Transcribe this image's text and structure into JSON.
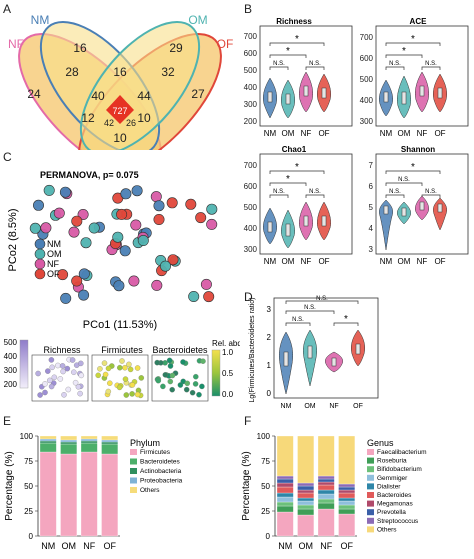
{
  "panels": {
    "A": "A",
    "B": "B",
    "C": "C",
    "D": "D",
    "E": "E",
    "F": "F"
  },
  "colors": {
    "NM": "#4a7fb5",
    "OM": "#4fb3b0",
    "NF": "#d85aa5",
    "OF": "#e0473a"
  },
  "venn": {
    "labels": {
      "NM": "NM",
      "OM": "OM",
      "NF": "NF",
      "OF": "OF"
    },
    "regions": [
      "16",
      "29",
      "28",
      "16",
      "32",
      "24",
      "40",
      "44",
      "27",
      "727",
      "12",
      "42",
      "26",
      "10",
      "10"
    ]
  },
  "violins": {
    "titles": [
      "Richness",
      "ACE",
      "Chao1",
      "Shannon"
    ],
    "groups": [
      "NM",
      "OM",
      "NF",
      "OF"
    ],
    "sig": {
      "ns": "N.S.",
      "star": "*"
    },
    "richness_ticks": [
      "200",
      "300",
      "400",
      "500",
      "600",
      "700"
    ],
    "ace_ticks": [
      "300",
      "400",
      "500",
      "600",
      "700"
    ],
    "chao1_ticks": [
      "300",
      "400",
      "500",
      "600",
      "700"
    ],
    "shannon_ticks": [
      "3",
      "4",
      "5",
      "6",
      "7"
    ]
  },
  "pcoa": {
    "stat": "PERMANOVA, p= 0.075",
    "xlabel": "PCo1 (11.53%)",
    "ylabel": "PCo2 (8.5%)",
    "legend": [
      "NM",
      "OM",
      "NF",
      "OF"
    ],
    "mini_titles": [
      "Richness",
      "Firmicutes",
      "Bacteroidetes"
    ],
    "richness_ticks": [
      "500",
      "400",
      "300",
      "200"
    ],
    "rel_label": "Rel. abd.",
    "rel_ticks": [
      "1.0",
      "0.5",
      "0.0"
    ]
  },
  "ratio": {
    "ylabel": "Lg(Firmicutes/Bacteroidetes ratio)",
    "yticks": [
      "3",
      "2",
      "1",
      "0"
    ],
    "groups": [
      "NM",
      "OM",
      "NF",
      "OF"
    ]
  },
  "chart_data": [
    {
      "type": "bar",
      "panel": "E",
      "categories": [
        "NM",
        "OM",
        "NF",
        "OF"
      ],
      "ylabel": "Percentage (%)",
      "ylim": [
        0,
        100
      ],
      "legend_title": "Phylum",
      "series": [
        {
          "name": "Firmicutes",
          "color": "#f4a6bf",
          "values": [
            84,
            82,
            84,
            82
          ]
        },
        {
          "name": "Bacteroidetes",
          "color": "#4caf6a",
          "values": [
            9,
            10,
            9,
            10
          ]
        },
        {
          "name": "Actinobacteria",
          "color": "#2f8f5e",
          "values": [
            2,
            2,
            2,
            2
          ]
        },
        {
          "name": "Proteobacteria",
          "color": "#7fb3d5",
          "values": [
            2,
            2,
            2,
            2
          ]
        },
        {
          "name": "Others",
          "color": "#f6dc7a",
          "values": [
            3,
            4,
            3,
            4
          ]
        }
      ]
    },
    {
      "type": "bar",
      "panel": "F",
      "categories": [
        "NM",
        "OM",
        "NF",
        "OF"
      ],
      "ylabel": "Percentage (%)",
      "ylim": [
        0,
        100
      ],
      "legend_title": "Genus",
      "series": [
        {
          "name": "Faecalibacterium",
          "color": "#f4a6bf",
          "values": [
            24,
            21,
            27,
            22
          ]
        },
        {
          "name": "Roseburia",
          "color": "#3f9e57",
          "values": [
            6,
            6,
            6,
            5
          ]
        },
        {
          "name": "Bifidobacterium",
          "color": "#6cc07a",
          "values": [
            4,
            4,
            4,
            4
          ]
        },
        {
          "name": "Gemmiger",
          "color": "#8fbfdc",
          "values": [
            5,
            4,
            5,
            4
          ]
        },
        {
          "name": "Dialister",
          "color": "#2e86a8",
          "values": [
            4,
            3,
            4,
            3
          ]
        },
        {
          "name": "Bacteroides",
          "color": "#e05a5a",
          "values": [
            6,
            5,
            5,
            5
          ]
        },
        {
          "name": "Megamonas",
          "color": "#b04a6a",
          "values": [
            4,
            3,
            3,
            3
          ]
        },
        {
          "name": "Prevotella",
          "color": "#3a5fa8",
          "values": [
            4,
            4,
            3,
            3
          ]
        },
        {
          "name": "Streptococcus",
          "color": "#8c6bb5",
          "values": [
            3,
            3,
            3,
            3
          ]
        },
        {
          "name": "Others",
          "color": "#f7d97a",
          "values": [
            40,
            47,
            40,
            48
          ]
        }
      ]
    }
  ]
}
